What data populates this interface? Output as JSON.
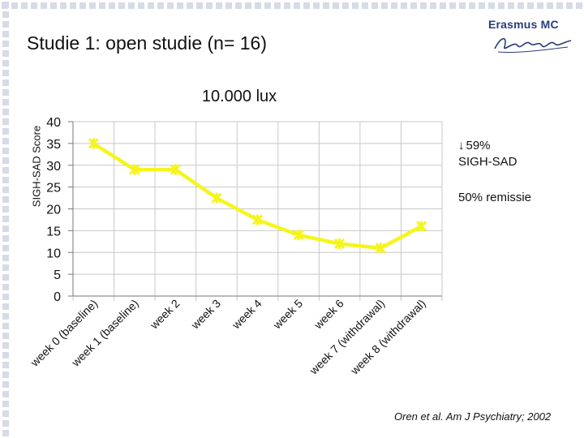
{
  "slide": {
    "title": "Studie 1: open studie (n= 16)",
    "logo_text": "Erasmus MC",
    "logo_script": "Zafung",
    "annotation_arrow": "↓",
    "annotation_1_line1": "59%",
    "annotation_1_line2": "SIGH-SAD",
    "annotation_2": "50% remissie",
    "citation": "Oren et al. Am J Psychiatry; 2002"
  },
  "chart_data": {
    "type": "line",
    "title": "10.000 lux",
    "xlabel": "",
    "ylabel": "SIGH-SAD Score",
    "categories": [
      "week 0 (baseline)",
      "week 1 (baseline)",
      "week 2",
      "week 3",
      "week 4",
      "week 5",
      "week 6",
      "week 7 (withdrawal)",
      "week 8 (withdrawal)"
    ],
    "series": [
      {
        "values": [
          35,
          29,
          29,
          22.5,
          17.5,
          14,
          12,
          11,
          16
        ]
      }
    ],
    "ylim": [
      0,
      40
    ],
    "yticks": [
      0,
      5,
      10,
      15,
      20,
      25,
      30,
      35,
      40
    ],
    "grid": true,
    "legend": "none",
    "colors": {
      "line": "#f5f51e",
      "grid": "#c8c8c8",
      "frame": "#d6dbe6"
    }
  }
}
